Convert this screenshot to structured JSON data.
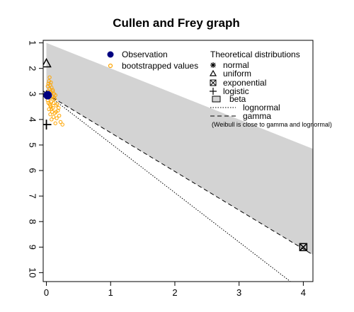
{
  "chart_data": {
    "type": "scatter",
    "title": "Cullen and Frey graph",
    "xlabel": "",
    "ylabel": "",
    "xlim": [
      -0.05,
      4.15
    ],
    "ylim": [
      0.9,
      10.35
    ],
    "y_reversed": true,
    "x_ticks": [
      "0",
      "1",
      "2",
      "3",
      "4"
    ],
    "y_ticks": [
      "1",
      "2",
      "3",
      "4",
      "5",
      "6",
      "7",
      "8",
      "9",
      "10"
    ],
    "observation": {
      "x": 0.02,
      "y": 3.05
    },
    "bootstrapped": [
      [
        0.05,
        2.35
      ],
      [
        0.04,
        2.5
      ],
      [
        0.07,
        2.55
      ],
      [
        0.03,
        2.6
      ],
      [
        0.06,
        2.65
      ],
      [
        0.02,
        2.7
      ],
      [
        0.08,
        2.75
      ],
      [
        0.05,
        2.8
      ],
      [
        0.1,
        2.85
      ],
      [
        0.03,
        2.9
      ],
      [
        0.07,
        2.95
      ],
      [
        0.12,
        3.0
      ],
      [
        0.04,
        3.05
      ],
      [
        0.09,
        3.1
      ],
      [
        0.06,
        3.15
      ],
      [
        0.13,
        3.2
      ],
      [
        0.02,
        3.25
      ],
      [
        0.08,
        3.3
      ],
      [
        0.11,
        3.35
      ],
      [
        0.05,
        3.4
      ],
      [
        0.15,
        3.45
      ],
      [
        0.07,
        3.5
      ],
      [
        0.1,
        3.55
      ],
      [
        0.04,
        3.6
      ],
      [
        0.18,
        3.65
      ],
      [
        0.09,
        3.7
      ],
      [
        0.13,
        3.75
      ],
      [
        0.06,
        3.8
      ],
      [
        0.2,
        3.85
      ],
      [
        0.11,
        3.9
      ],
      [
        0.16,
        3.95
      ],
      [
        0.08,
        4.0
      ],
      [
        0.22,
        4.1
      ],
      [
        0.14,
        4.15
      ],
      [
        0.25,
        4.2
      ],
      [
        0.12,
        3.15
      ],
      [
        0.14,
        3.05
      ],
      [
        0.03,
        3.35
      ],
      [
        0.17,
        3.4
      ],
      [
        0.01,
        2.95
      ],
      [
        0.19,
        3.55
      ],
      [
        0.06,
        3.45
      ],
      [
        0.1,
        2.9
      ],
      [
        0.08,
        3.6
      ],
      [
        0.15,
        3.7
      ]
    ],
    "theoretical": {
      "normal": {
        "x": 0,
        "y": 3
      },
      "uniform": {
        "x": 0,
        "y": 1.8
      },
      "exponential": {
        "x": 4,
        "y": 9
      },
      "logistic": {
        "x": 0,
        "y": 4.2
      }
    },
    "beta_region_top": [
      [
        0,
        1
      ],
      [
        4.15,
        5.15
      ]
    ],
    "beta_region_bottom": [
      [
        0,
        3
      ],
      [
        4.15,
        9.3
      ]
    ],
    "lognormal_line": [
      [
        0,
        3
      ],
      [
        3.8,
        10.35
      ]
    ],
    "gamma_line": [
      [
        0,
        3
      ],
      [
        4.15,
        9.3
      ]
    ]
  },
  "legend": {
    "observation": "Observation",
    "bootstrapped": "bootstrapped values",
    "theoretical_header": "Theoretical distributions",
    "normal": "normal",
    "uniform": "uniform",
    "exponential": "exponential",
    "logistic": "logistic",
    "beta": "beta",
    "lognormal": "lognormal",
    "gamma": "gamma",
    "weibull_note": "(Weibull is close to gamma and lognormal)"
  },
  "colors": {
    "observation": "#000080",
    "bootstrapped": "#ffa500",
    "beta_fill": "#d3d3d3"
  }
}
